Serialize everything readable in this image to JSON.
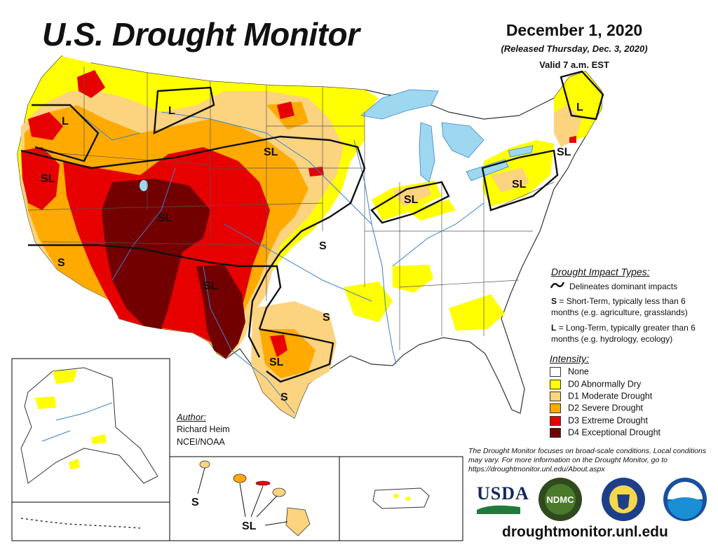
{
  "header": {
    "title": "U.S. Drought Monitor",
    "date": "December 1, 2020",
    "released": "(Released Thursday, Dec. 3, 2020)",
    "valid": "Valid 7 a.m. EST"
  },
  "impact_types": {
    "title": "Drought Impact Types:",
    "delineates": "Delineates dominant impacts",
    "short_term": {
      "code": "S",
      "text": "= Short-Term, typically less than 6 months (e.g. agriculture, grasslands)"
    },
    "long_term": {
      "code": "L",
      "text": "= Long-Term, typically greater than 6 months (e.g. hydrology, ecology)"
    }
  },
  "intensity": {
    "title": "Intensity:",
    "levels": [
      {
        "label": "None",
        "color": "#ffffff"
      },
      {
        "label": "D0 Abnormally Dry",
        "color": "#ffff00"
      },
      {
        "label": "D1 Moderate Drought",
        "color": "#fcd37f"
      },
      {
        "label": "D2 Severe Drought",
        "color": "#ffaa00"
      },
      {
        "label": "D3 Extreme Drought",
        "color": "#e60000"
      },
      {
        "label": "D4 Exceptional Drought",
        "color": "#730000"
      }
    ]
  },
  "author": {
    "label": "Author:",
    "name": "Richard Heim",
    "org": "NCEI/NOAA"
  },
  "note": "The Drought Monitor focuses on broad-scale conditions. Local conditions may vary. For more information on the Drought Monitor, go to https://droughtmonitor.unl.edu/About.aspx",
  "website": "droughtmonitor.unl.edu",
  "logos": {
    "usda": "USDA",
    "ndmc": "NDMC"
  },
  "map_labels": {
    "L": "L",
    "S": "S",
    "SL": "SL"
  },
  "colors": {
    "water": "#9ed8f0",
    "border": "#555555",
    "river": "#3a7fd0",
    "impact_line": "#111111"
  }
}
